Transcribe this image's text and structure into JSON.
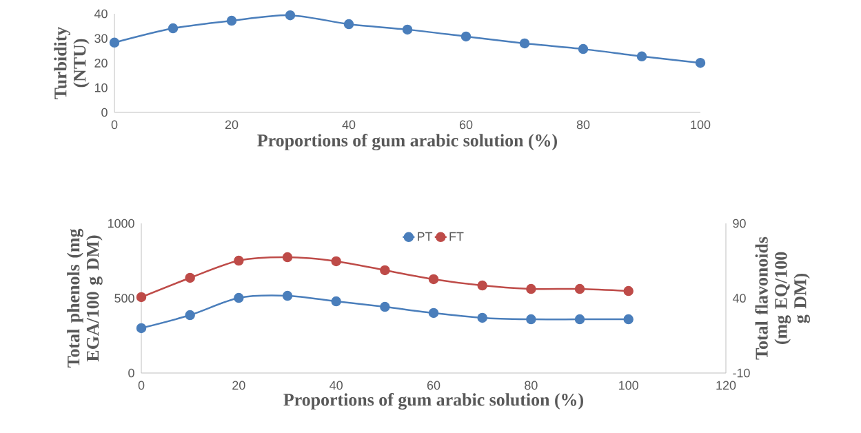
{
  "chart_data": [
    {
      "type": "line",
      "xlabel": "Proportions of gum arabic solution (%)",
      "ylabel": "Turbidity (NTU)",
      "x": [
        0,
        10,
        20,
        30,
        40,
        50,
        60,
        70,
        80,
        90,
        100
      ],
      "series": [
        {
          "color": "#4a7ebb",
          "values": [
            28.3,
            34.1,
            37.2,
            39.4,
            35.8,
            33.6,
            30.8,
            28.0,
            25.7,
            22.7,
            20.1
          ]
        }
      ],
      "xlim": [
        0,
        100
      ],
      "xticks": [
        0,
        20,
        40,
        60,
        80,
        100
      ],
      "ylim": [
        0,
        40
      ],
      "yticks": [
        0,
        10,
        20,
        30,
        40
      ],
      "marker": "circle",
      "grid": false,
      "legend": false
    },
    {
      "type": "line",
      "xlabel": "Proportions of gum arabic solution (%)",
      "ylabel": "Total phenols (mg EGA/100 g DM)",
      "y2label": "Total flavonoids (mg EQ/100 g DM)",
      "x": [
        0,
        10,
        20,
        30,
        40,
        50,
        60,
        70,
        80,
        90,
        100
      ],
      "series": [
        {
          "name": "PT",
          "color": "#4a7ebb",
          "values": [
            300,
            387,
            502,
            516,
            479,
            442,
            401,
            369,
            359,
            359,
            359
          ]
        },
        {
          "name": "FT",
          "color": "#be4b48",
          "axis": "y2",
          "values": [
            40.7,
            53.6,
            65.1,
            67.4,
            64.7,
            58.7,
            52.7,
            48.5,
            46.2,
            46.2,
            44.8
          ]
        }
      ],
      "xlim": [
        0,
        120
      ],
      "xticks": [
        0,
        20,
        40,
        60,
        80,
        100,
        120
      ],
      "ylim": [
        0,
        1000
      ],
      "yticks": [
        0,
        500,
        1000
      ],
      "y2lim": [
        -10,
        90
      ],
      "y2ticks": [
        -10,
        40,
        90
      ],
      "marker": "circle",
      "grid": false,
      "legend": "top"
    }
  ]
}
